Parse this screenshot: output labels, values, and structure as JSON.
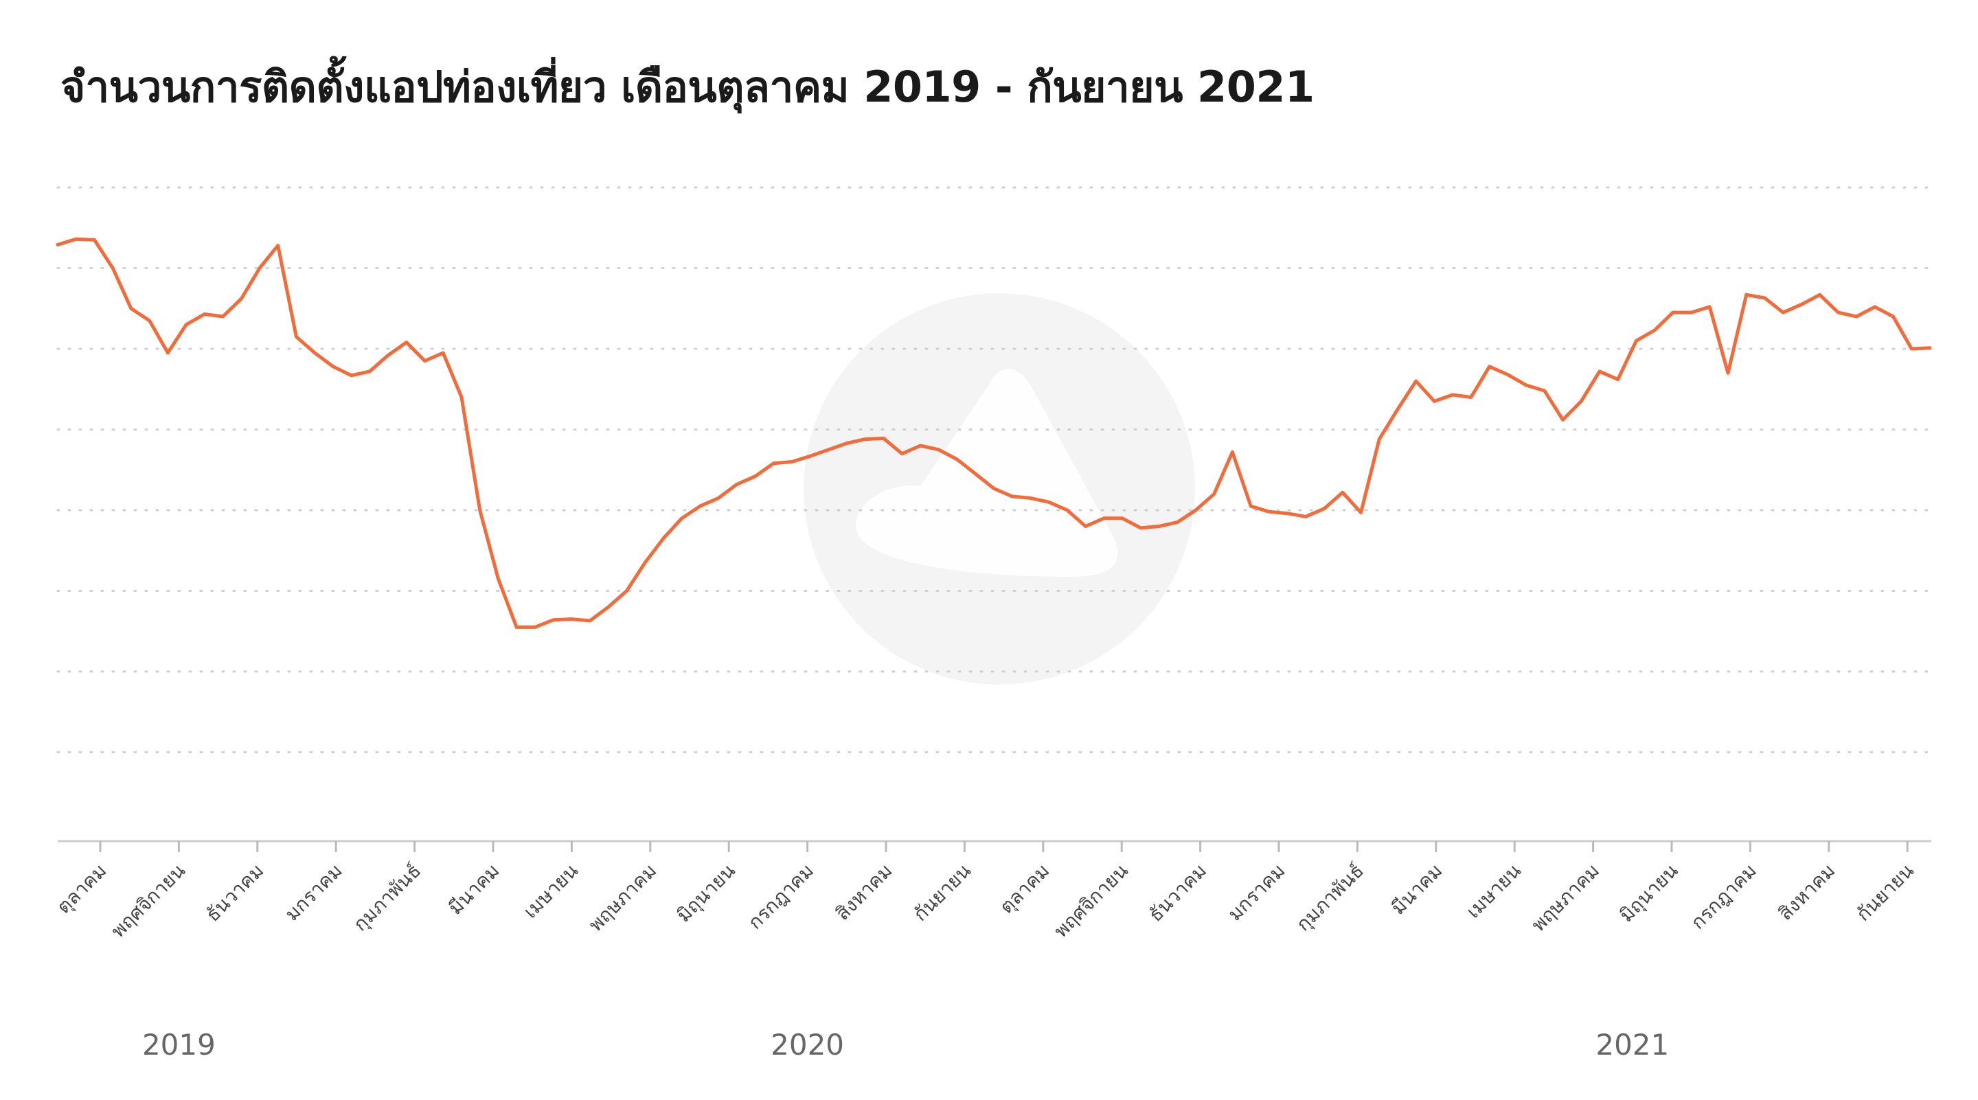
{
  "title": "จำนวนการติดตั้งแอปท่องเที่ยว เดือนตุลาคม 2019 - กันยายน 2021",
  "colors": {
    "line": "#f26b3a",
    "grid": "#cfcfcf",
    "watermark": "#f4f4f4"
  },
  "watermark_icon": "logo-watermark-icon",
  "chart_data": {
    "type": "line",
    "title": "จำนวนการติดตั้งแอปท่องเที่ยว เดือนตุลาคม 2019 - กันยายน 2021",
    "xlabel": "",
    "ylabel": "",
    "y_axis_labels_shown": false,
    "ylim": [
      0,
      8
    ],
    "grid": "horizontal dotted",
    "legend": "none",
    "x_axis": "weekly, Oct 2019 – Sep 2021",
    "month_labels": [
      "ตุลาคม",
      "พฤศจิกายน",
      "ธันวาคม",
      "มกราคม",
      "กุมภาพันธ์",
      "มีนาคม",
      "เมษายน",
      "พฤษภาคม",
      "มิถุนายน",
      "กรกฎาคม",
      "สิงหาคม",
      "กันยายน",
      "ตุลาคม",
      "พฤศจิกายน",
      "ธันวาคม",
      "มกราคม",
      "กุมภาพันธ์",
      "มีนาคม",
      "เมษายน",
      "พฤษภาคม",
      "มิถุนายน",
      "กรกฎาคม",
      "สิงหาคม",
      "กันยายน"
    ],
    "year_labels": [
      {
        "label": "2019",
        "month_index": 1.0
      },
      {
        "label": "2020",
        "month_index": 9.0
      },
      {
        "label": "2021",
        "month_index": 19.5
      }
    ],
    "series": [
      {
        "values": [
          7.29,
          7.36,
          7.35,
          7.0,
          6.5,
          6.35,
          5.95,
          6.3,
          6.43,
          6.4,
          6.62,
          7.0,
          7.28,
          6.15,
          5.95,
          5.78,
          5.67,
          5.72,
          5.92,
          6.08,
          5.85,
          5.95,
          5.4,
          4.0,
          3.15,
          2.55,
          2.55,
          2.64,
          2.65,
          2.63,
          2.8,
          3.0,
          3.35,
          3.65,
          3.9,
          4.05,
          4.15,
          4.32,
          4.42,
          4.58,
          4.6,
          4.67,
          4.75,
          4.83,
          4.88,
          4.89,
          4.7,
          4.8,
          4.75,
          4.63,
          4.45,
          4.27,
          4.17,
          4.15,
          4.1,
          4.0,
          3.8,
          3.9,
          3.9,
          3.78,
          3.8,
          3.85,
          4.0,
          4.2,
          4.72,
          4.05,
          3.98,
          3.96,
          3.92,
          4.02,
          4.22,
          3.97,
          4.88,
          5.25,
          5.6,
          5.35,
          5.43,
          5.4,
          5.78,
          5.68,
          5.55,
          5.48,
          5.12,
          5.35,
          5.72,
          5.62,
          6.1,
          6.23,
          6.45,
          6.45,
          6.52,
          5.7,
          6.67,
          6.63,
          6.45,
          6.55,
          6.67,
          6.45,
          6.4,
          6.52,
          6.4,
          6.0,
          6.01
        ]
      }
    ]
  }
}
